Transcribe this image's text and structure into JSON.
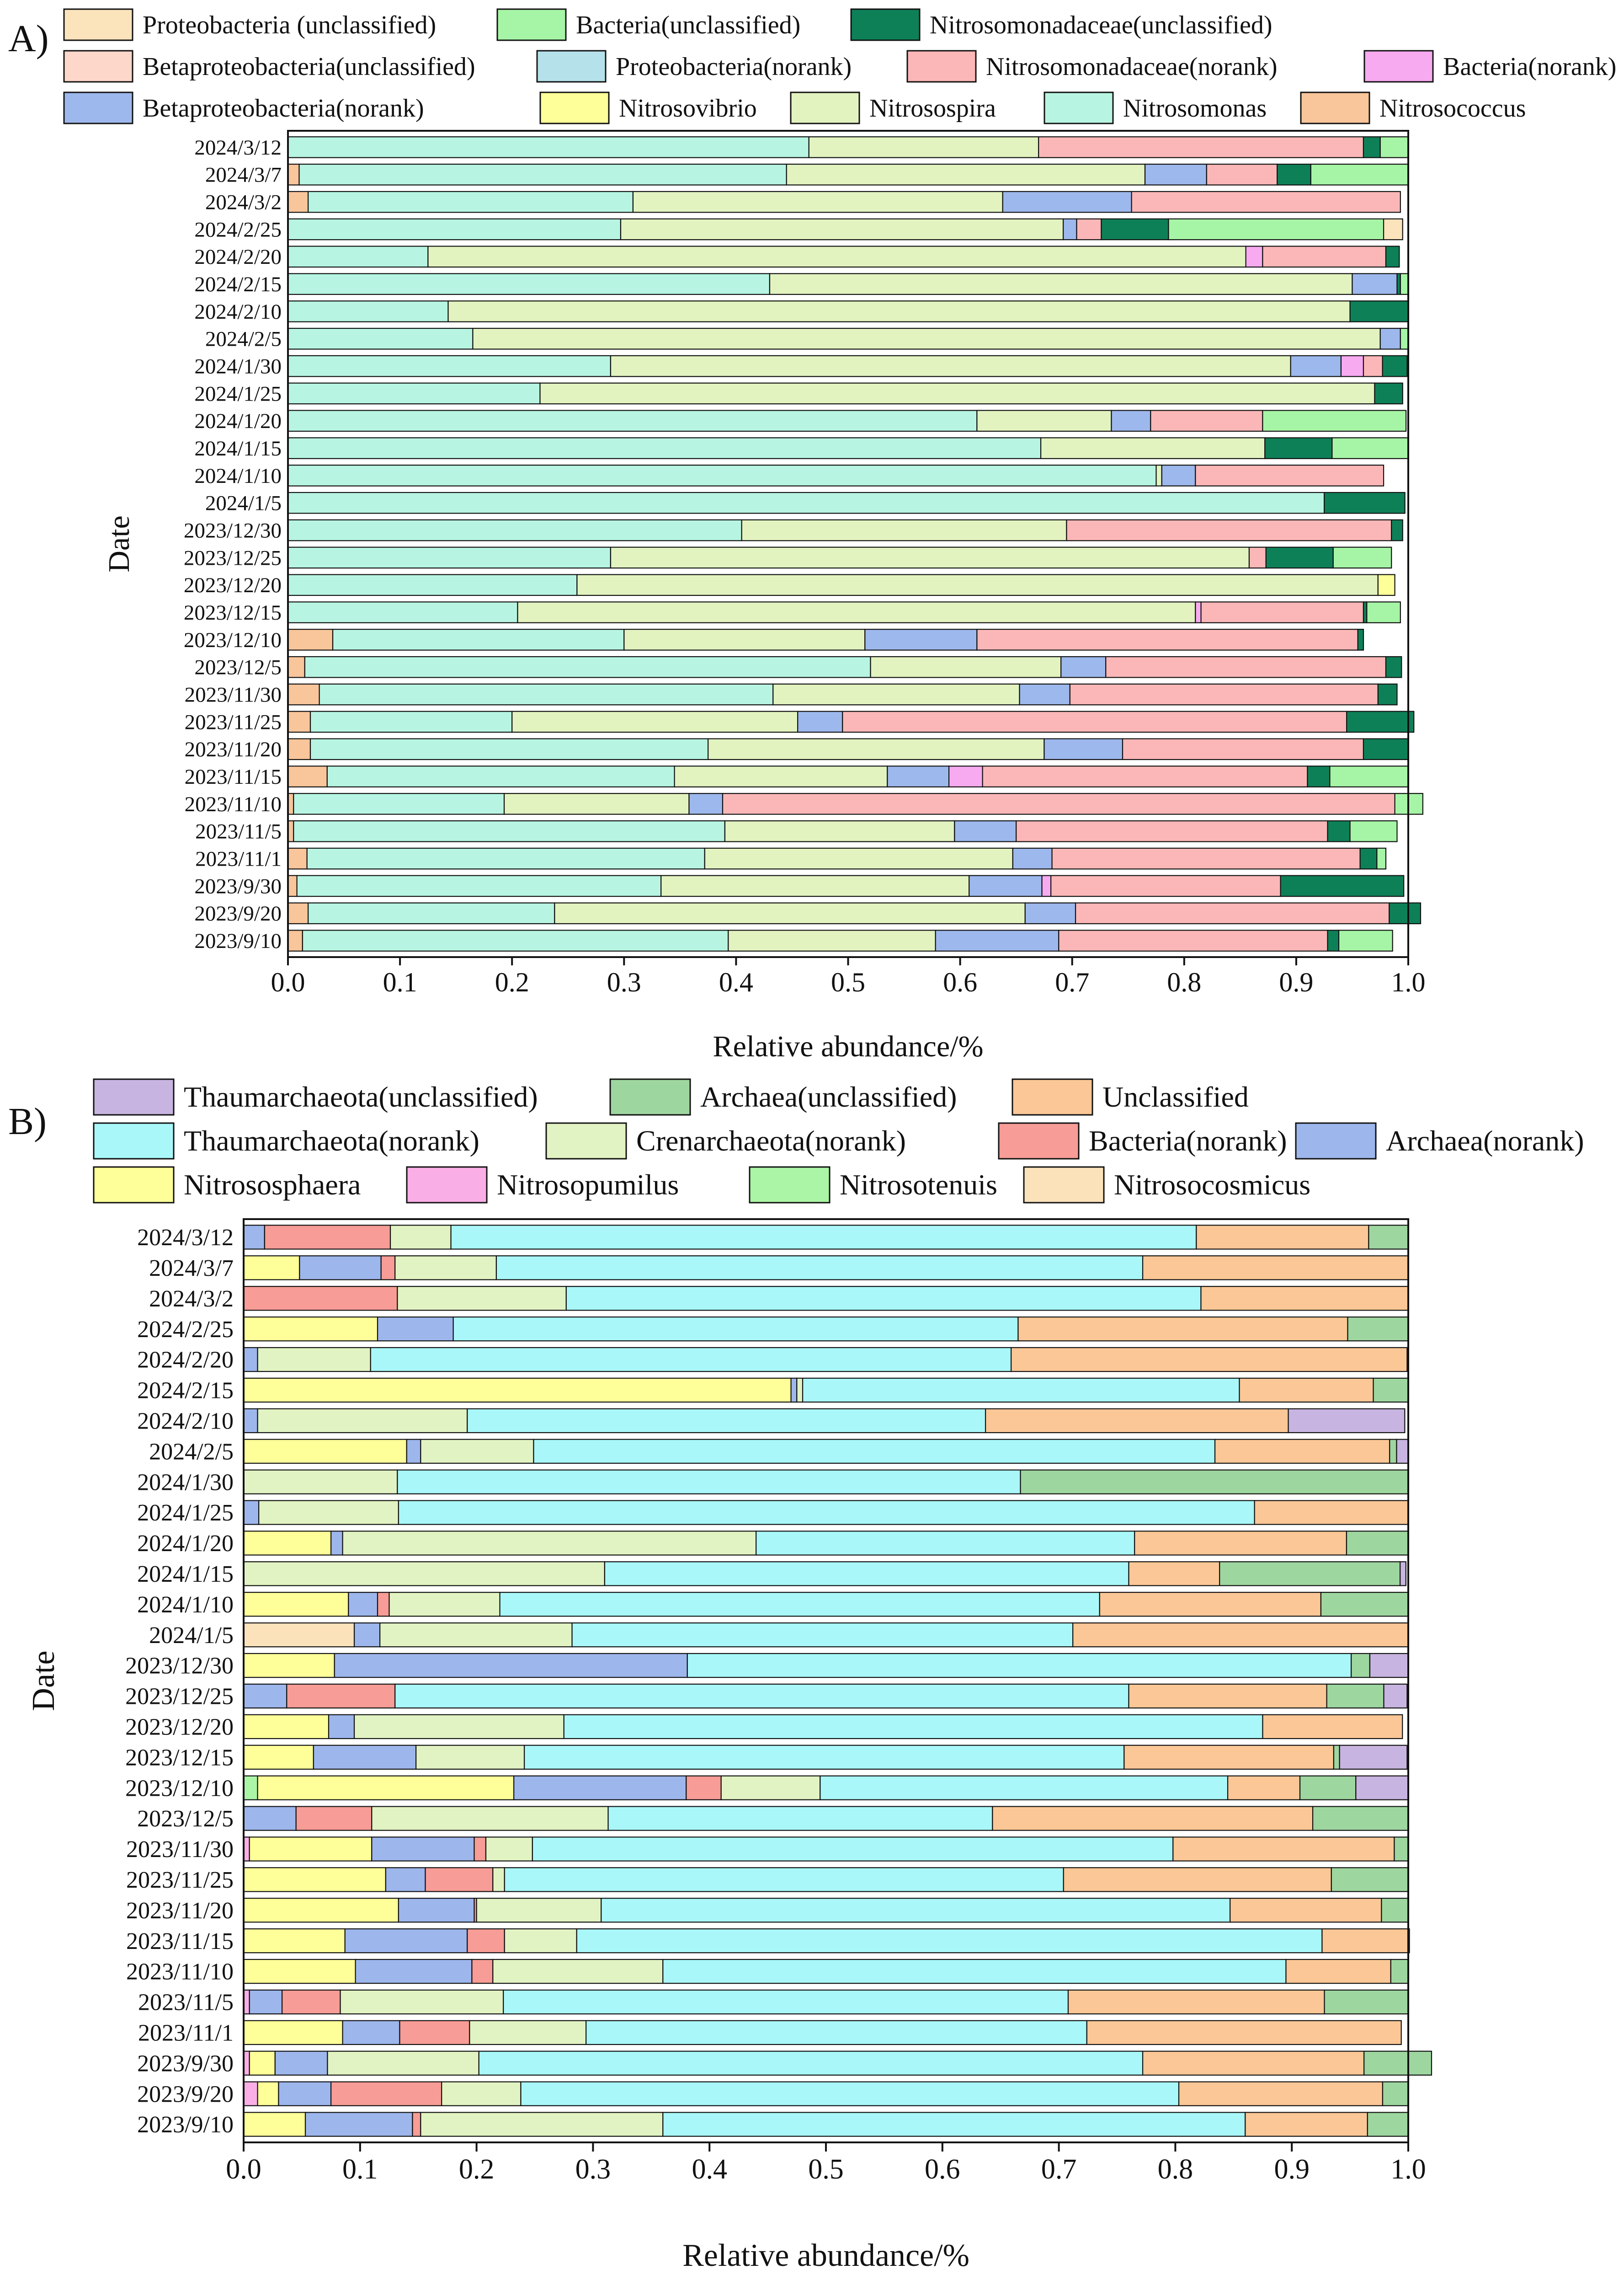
{
  "panel_a": {
    "label": "A)",
    "legend": [
      {
        "name": "Proteobacteria (unclassified)",
        "color": "#FBE3BC"
      },
      {
        "name": "Bacteria(unclassified)",
        "color": "#A6F5A6"
      },
      {
        "name": "Nitrosomonadaceae(unclassified)",
        "color": "#0E8058"
      },
      {
        "name": "Betaproteobacteria(unclassified)",
        "color": "#FDD7C9"
      },
      {
        "name": "Proteobacteria(norank)",
        "color": "#B5E1EA"
      },
      {
        "name": "Nitrosomonadaceae(norank)",
        "color": "#FBB7B7"
      },
      {
        "name": "Bacteria(norank)",
        "color": "#F7AAF0"
      },
      {
        "name": "Betaproteobacteria(norank)",
        "color": "#9DB8EC"
      },
      {
        "name": "Nitrosovibrio",
        "color": "#FFFF99"
      },
      {
        "name": "Nitrosospira",
        "color": "#E2F3C0"
      },
      {
        "name": "Nitrosomonas",
        "color": "#B7F5E2"
      },
      {
        "name": "Nitrosococcus",
        "color": "#F9C59A"
      }
    ],
    "chart_data": {
      "type": "bar",
      "orientation": "horizontal",
      "stacked": true,
      "xlabel": "Relative abundance/%",
      "ylabel": "Date",
      "xlim": [
        0,
        1
      ],
      "xticks": [
        "0.0",
        "0.1",
        "0.2",
        "0.3",
        "0.4",
        "0.5",
        "0.6",
        "0.7",
        "0.8",
        "0.9",
        "1.0"
      ],
      "categories": [
        "2024/3/12",
        "2024/3/7",
        "2024/3/2",
        "2024/2/25",
        "2024/2/20",
        "2024/2/15",
        "2024/2/10",
        "2024/2/5",
        "2024/1/30",
        "2024/1/25",
        "2024/1/20",
        "2024/1/15",
        "2024/1/10",
        "2024/1/5",
        "2023/12/30",
        "2023/12/25",
        "2023/12/20",
        "2023/12/15",
        "2023/12/10",
        "2023/12/5",
        "2023/11/30",
        "2023/11/25",
        "2023/11/20",
        "2023/11/15",
        "2023/11/10",
        "2023/11/5",
        "2023/11/1",
        "2023/9/30",
        "2023/9/20",
        "2023/9/10"
      ],
      "series": [
        {
          "name": "Nitrosococcus",
          "color": "#F9C59A",
          "values": [
            0,
            0.01,
            0.018,
            0,
            0,
            0,
            0,
            0,
            0,
            0,
            0,
            0,
            0,
            0,
            0,
            0,
            0,
            0,
            0.04,
            0.015,
            0.028,
            0.02,
            0.02,
            0.035,
            0.005,
            0.005,
            0.017,
            0.008,
            0.018,
            0.013
          ]
        },
        {
          "name": "Nitrosomonas",
          "color": "#B7F5E2",
          "values": [
            0.465,
            0.435,
            0.29,
            0.297,
            0.125,
            0.43,
            0.143,
            0.165,
            0.288,
            0.225,
            0.615,
            0.672,
            0.775,
            0.925,
            0.405,
            0.288,
            0.258,
            0.205,
            0.26,
            0.505,
            0.405,
            0.18,
            0.355,
            0.31,
            0.188,
            0.385,
            0.355,
            0.325,
            0.22,
            0.38
          ]
        },
        {
          "name": "Nitrosospira",
          "color": "#E2F3C0",
          "values": [
            0.205,
            0.32,
            0.33,
            0.395,
            0.73,
            0.52,
            0.805,
            0.81,
            0.607,
            0.745,
            0.12,
            0.2,
            0.005,
            0,
            0.29,
            0.57,
            0.715,
            0.605,
            0.215,
            0.17,
            0.22,
            0.255,
            0.3,
            0.19,
            0.165,
            0.205,
            0.275,
            0.275,
            0.42,
            0.185
          ]
        },
        {
          "name": "Betaproteobacteria(norank)",
          "color": "#9DB8EC",
          "values": [
            0,
            0.055,
            0.115,
            0.012,
            0,
            0.04,
            0,
            0.018,
            0.045,
            0,
            0.035,
            0,
            0.03,
            0,
            0,
            0,
            0,
            0,
            0.1,
            0.04,
            0.045,
            0.04,
            0.07,
            0.055,
            0.03,
            0.055,
            0.035,
            0.065,
            0.045,
            0.11
          ]
        },
        {
          "name": "Bacteria(norank)",
          "color": "#F7AAF0",
          "values": [
            0,
            0,
            0,
            0,
            0.015,
            0,
            0,
            0,
            0.02,
            0,
            0,
            0,
            0,
            0,
            0,
            0,
            0,
            0.005,
            0,
            0,
            0,
            0,
            0,
            0.03,
            0,
            0,
            0,
            0.008,
            0,
            0
          ]
        },
        {
          "name": "Nitrosomonadaceae(norank)",
          "color": "#FBB7B7",
          "values": [
            0.29,
            0.063,
            0.24,
            0.022,
            0.11,
            0,
            0,
            0,
            0.017,
            0,
            0.1,
            0,
            0.168,
            0,
            0.29,
            0.015,
            0,
            0.145,
            0.34,
            0.25,
            0.275,
            0.45,
            0.215,
            0.29,
            0.6,
            0.278,
            0.275,
            0.205,
            0.28,
            0.24
          ]
        },
        {
          "name": "Nitrosovibrio",
          "color": "#FFFF99",
          "values": [
            0,
            0,
            0,
            0,
            0,
            0,
            0,
            0,
            0,
            0,
            0,
            0,
            0,
            0,
            0,
            0,
            0.015,
            0,
            0,
            0,
            0,
            0,
            0,
            0,
            0,
            0,
            0,
            0,
            0,
            0
          ]
        },
        {
          "name": "Nitrosomonadaceae(unclassified)",
          "color": "#0E8058",
          "values": [
            0.015,
            0.03,
            0,
            0.06,
            0.012,
            0.003,
            0.052,
            0,
            0.022,
            0.025,
            0,
            0.06,
            0,
            0.072,
            0.01,
            0.06,
            0,
            0.003,
            0.005,
            0.014,
            0.017,
            0.06,
            0.04,
            0.02,
            0,
            0.02,
            0.015,
            0.11,
            0.028,
            0.01
          ]
        },
        {
          "name": "Bacteria(unclassified)",
          "color": "#A6F5A6",
          "values": [
            0.025,
            0.087,
            0,
            0.192,
            0,
            0.007,
            0,
            0.007,
            0,
            0,
            0.128,
            0.068,
            0,
            0,
            0,
            0.052,
            0,
            0.03,
            0,
            0,
            0,
            0,
            0,
            0.07,
            0.025,
            0.042,
            0.008,
            0,
            0,
            0.048
          ]
        },
        {
          "name": "Proteobacteria (unclassified)",
          "color": "#FBE3BC",
          "values": [
            0,
            0,
            0,
            0.017,
            0,
            0,
            0,
            0,
            0,
            0,
            0,
            0,
            0,
            0,
            0,
            0,
            0,
            0,
            0,
            0,
            0,
            0,
            0,
            0,
            0,
            0,
            0,
            0,
            0,
            0
          ]
        }
      ]
    }
  },
  "panel_b": {
    "label": "B)",
    "legend": [
      {
        "name": "Thaumarchaeota(unclassified)",
        "color": "#C8B4E0"
      },
      {
        "name": "Archaea(unclassified)",
        "color": "#9ED6A0"
      },
      {
        "name": "Unclassified",
        "color": "#FBC796"
      },
      {
        "name": "Thaumarchaeota(norank)",
        "color": "#A9F7F9"
      },
      {
        "name": "Crenarchaeota(norank)",
        "color": "#E1F3C2"
      },
      {
        "name": "Bacteria(norank)",
        "color": "#F79C96"
      },
      {
        "name": "Archaea(norank)",
        "color": "#9DB6EC"
      },
      {
        "name": "Nitrososphaera",
        "color": "#FFFF99"
      },
      {
        "name": "Nitrosopumilus",
        "color": "#FAAEE6"
      },
      {
        "name": "Nitrosotenuis",
        "color": "#ABF5A6"
      },
      {
        "name": "Nitrosocosmicus",
        "color": "#FBE2BB"
      }
    ],
    "chart_data": {
      "type": "bar",
      "orientation": "horizontal",
      "stacked": true,
      "xlabel": "Relative abundance/%",
      "ylabel": "Date",
      "xlim": [
        0,
        1
      ],
      "xticks": [
        "0.0",
        "0.1",
        "0.2",
        "0.3",
        "0.4",
        "0.5",
        "0.6",
        "0.7",
        "0.8",
        "0.9",
        "1.0"
      ],
      "categories": [
        "2024/3/12",
        "2024/3/7",
        "2024/3/2",
        "2024/2/25",
        "2024/2/20",
        "2024/2/15",
        "2024/2/10",
        "2024/2/5",
        "2024/1/30",
        "2024/1/25",
        "2024/1/20",
        "2024/1/15",
        "2024/1/10",
        "2024/1/5",
        "2023/12/30",
        "2023/12/25",
        "2023/12/20",
        "2023/12/15",
        "2023/12/10",
        "2023/12/5",
        "2023/11/30",
        "2023/11/25",
        "2023/11/20",
        "2023/11/15",
        "2023/11/10",
        "2023/11/5",
        "2023/11/1",
        "2023/9/30",
        "2023/9/20",
        "2023/9/10"
      ],
      "series": [
        {
          "name": "Nitrosopumilus",
          "color": "#FAAEE6",
          "values": [
            0,
            0,
            0,
            0,
            0,
            0,
            0,
            0,
            0,
            0,
            0,
            0,
            0,
            0,
            0,
            0,
            0,
            0,
            0,
            0,
            0.005,
            0,
            0,
            0,
            0,
            0.005,
            0,
            0.005,
            0.012,
            0
          ]
        },
        {
          "name": "Nitrosotenuis",
          "color": "#ABF5A6",
          "values": [
            0,
            0,
            0,
            0,
            0,
            0,
            0,
            0,
            0,
            0,
            0,
            0,
            0,
            0,
            0,
            0,
            0,
            0,
            0.012,
            0,
            0,
            0,
            0,
            0,
            0,
            0,
            0,
            0,
            0,
            0
          ]
        },
        {
          "name": "Nitrosocosmicus",
          "color": "#FBE2BB",
          "values": [
            0,
            0,
            0,
            0,
            0,
            0,
            0,
            0,
            0,
            0,
            0,
            0,
            0,
            0.095,
            0,
            0,
            0,
            0,
            0,
            0,
            0,
            0,
            0,
            0,
            0,
            0,
            0,
            0,
            0,
            0
          ]
        },
        {
          "name": "Nitrososphaera",
          "color": "#FFFF99",
          "values": [
            0,
            0.048,
            0,
            0.115,
            0,
            0.47,
            0,
            0.14,
            0,
            0,
            0.075,
            0,
            0.09,
            0,
            0.078,
            0,
            0.073,
            0.06,
            0.22,
            0,
            0.105,
            0.122,
            0.133,
            0.087,
            0.096,
            0,
            0.085,
            0.022,
            0.018,
            0.053
          ]
        },
        {
          "name": "Archaea(norank)",
          "color": "#9DB6EC",
          "values": [
            0.018,
            0.07,
            0,
            0.065,
            0.012,
            0.005,
            0.012,
            0.012,
            0,
            0.013,
            0.01,
            0,
            0.025,
            0.022,
            0.303,
            0.037,
            0.022,
            0.088,
            0.148,
            0.045,
            0.088,
            0.034,
            0.065,
            0.105,
            0.1,
            0.028,
            0.049,
            0.045,
            0.045,
            0.092
          ]
        },
        {
          "name": "Bacteria(norank)",
          "color": "#F79C96",
          "values": [
            0.108,
            0.012,
            0.132,
            0,
            0,
            0,
            0,
            0,
            0,
            0,
            0,
            0,
            0.01,
            0,
            0,
            0.093,
            0,
            0,
            0.03,
            0.065,
            0.01,
            0.058,
            0.002,
            0.032,
            0.018,
            0.05,
            0.06,
            0,
            0.095,
            0.007
          ]
        },
        {
          "name": "Crenarchaeota(norank)",
          "color": "#E1F3C2",
          "values": [
            0.052,
            0.087,
            0.145,
            0,
            0.097,
            0.005,
            0.18,
            0.097,
            0.132,
            0.12,
            0.355,
            0.31,
            0.095,
            0.165,
            0,
            0,
            0.18,
            0.093,
            0.085,
            0.203,
            0.04,
            0.01,
            0.107,
            0.062,
            0.146,
            0.14,
            0.1,
            0.13,
            0.068,
            0.208
          ]
        },
        {
          "name": "Thaumarchaeota(norank)",
          "color": "#A9F7F9",
          "values": [
            0.64,
            0.555,
            0.545,
            0.485,
            0.55,
            0.375,
            0.445,
            0.585,
            0.535,
            0.735,
            0.325,
            0.45,
            0.515,
            0.43,
            0.57,
            0.63,
            0.6,
            0.515,
            0.35,
            0.33,
            0.55,
            0.48,
            0.54,
            0.64,
            0.535,
            0.485,
            0.43,
            0.57,
            0.565,
            0.5
          ]
        },
        {
          "name": "Unclassified",
          "color": "#FBC796",
          "values": [
            0.148,
            0.228,
            0.178,
            0.283,
            0.34,
            0.115,
            0.26,
            0.15,
            0,
            0.132,
            0.182,
            0.078,
            0.19,
            0.288,
            0,
            0.17,
            0.12,
            0.18,
            0.062,
            0.275,
            0.19,
            0.23,
            0.13,
            0.075,
            0.09,
            0.22,
            0.27,
            0.19,
            0.175,
            0.105
          ]
        },
        {
          "name": "Archaea(unclassified)",
          "color": "#9ED6A0",
          "values": [
            0.034,
            0,
            0,
            0.052,
            0,
            0.03,
            0,
            0.006,
            0.333,
            0,
            0.053,
            0.155,
            0.075,
            0,
            0.016,
            0.049,
            0,
            0.005,
            0.048,
            0.082,
            0.012,
            0.066,
            0.023,
            0,
            0.015,
            0.072,
            0,
            0.058,
            0.022,
            0.035
          ]
        },
        {
          "name": "Thaumarchaeota(unclassified)",
          "color": "#C8B4E0",
          "values": [
            0,
            0,
            0,
            0,
            0,
            0,
            0.1,
            0.01,
            0,
            0,
            0,
            0.005,
            0,
            0,
            0.033,
            0.02,
            0,
            0.058,
            0.045,
            0,
            0,
            0,
            0,
            0,
            0,
            0,
            0,
            0,
            0,
            0
          ]
        }
      ]
    }
  }
}
